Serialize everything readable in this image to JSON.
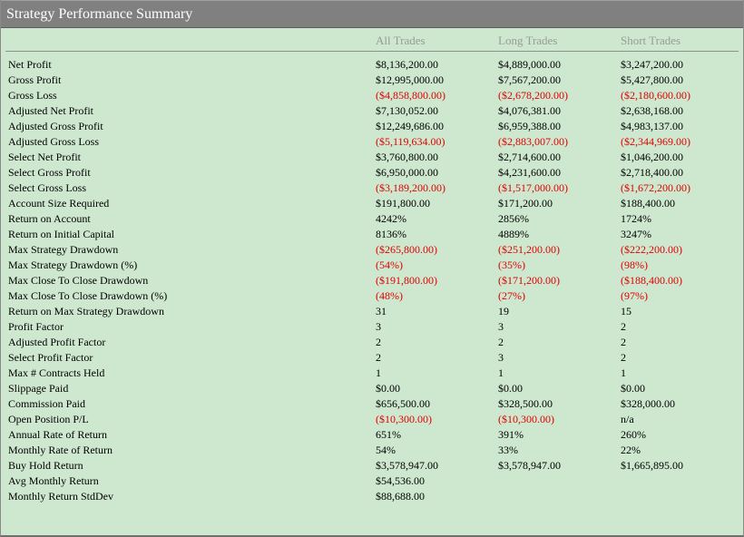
{
  "window": {
    "title": "Strategy Performance Summary"
  },
  "columns": {
    "all": "All Trades",
    "long": "Long Trades",
    "short": "Short Trades"
  },
  "rows": [
    {
      "label": "Net Profit",
      "all": "$8,136,200.00",
      "long": "$4,889,000.00",
      "short": "$3,247,200.00",
      "neg": [
        false,
        false,
        false
      ]
    },
    {
      "label": "Gross Profit",
      "all": "$12,995,000.00",
      "long": "$7,567,200.00",
      "short": "$5,427,800.00",
      "neg": [
        false,
        false,
        false
      ]
    },
    {
      "label": "Gross Loss",
      "all": "($4,858,800.00)",
      "long": "($2,678,200.00)",
      "short": "($2,180,600.00)",
      "neg": [
        true,
        true,
        true
      ]
    },
    {
      "label": "Adjusted Net Profit",
      "all": "$7,130,052.00",
      "long": "$4,076,381.00",
      "short": "$2,638,168.00",
      "neg": [
        false,
        false,
        false
      ]
    },
    {
      "label": "Adjusted Gross Profit",
      "all": "$12,249,686.00",
      "long": "$6,959,388.00",
      "short": "$4,983,137.00",
      "neg": [
        false,
        false,
        false
      ]
    },
    {
      "label": "Adjusted Gross Loss",
      "all": "($5,119,634.00)",
      "long": "($2,883,007.00)",
      "short": "($2,344,969.00)",
      "neg": [
        true,
        true,
        true
      ]
    },
    {
      "label": "Select Net Profit",
      "all": "$3,760,800.00",
      "long": "$2,714,600.00",
      "short": "$1,046,200.00",
      "neg": [
        false,
        false,
        false
      ]
    },
    {
      "label": "Select Gross Profit",
      "all": "$6,950,000.00",
      "long": "$4,231,600.00",
      "short": "$2,718,400.00",
      "neg": [
        false,
        false,
        false
      ]
    },
    {
      "label": "Select Gross Loss",
      "all": "($3,189,200.00)",
      "long": "($1,517,000.00)",
      "short": "($1,672,200.00)",
      "neg": [
        true,
        true,
        true
      ]
    },
    {
      "label": "Account Size Required",
      "all": "$191,800.00",
      "long": "$171,200.00",
      "short": "$188,400.00",
      "neg": [
        false,
        false,
        false
      ]
    },
    {
      "label": "Return on Account",
      "all": "4242%",
      "long": "2856%",
      "short": "1724%",
      "neg": [
        false,
        false,
        false
      ]
    },
    {
      "label": "Return on Initial Capital",
      "all": "8136%",
      "long": "4889%",
      "short": "3247%",
      "neg": [
        false,
        false,
        false
      ]
    },
    {
      "label": "Max Strategy Drawdown",
      "all": "($265,800.00)",
      "long": "($251,200.00)",
      "short": "($222,200.00)",
      "neg": [
        true,
        true,
        true
      ]
    },
    {
      "label": "Max Strategy Drawdown (%)",
      "all": "(54%)",
      "long": "(35%)",
      "short": "(98%)",
      "neg": [
        true,
        true,
        true
      ]
    },
    {
      "label": "Max Close To Close Drawdown",
      "all": "($191,800.00)",
      "long": "($171,200.00)",
      "short": "($188,400.00)",
      "neg": [
        true,
        true,
        true
      ]
    },
    {
      "label": "Max Close To Close Drawdown (%)",
      "all": "(48%)",
      "long": "(27%)",
      "short": "(97%)",
      "neg": [
        true,
        true,
        true
      ]
    },
    {
      "label": "Return on Max Strategy Drawdown",
      "all": "31",
      "long": "19",
      "short": "15",
      "neg": [
        false,
        false,
        false
      ]
    },
    {
      "label": "Profit Factor",
      "all": "3",
      "long": "3",
      "short": "2",
      "neg": [
        false,
        false,
        false
      ]
    },
    {
      "label": "Adjusted Profit Factor",
      "all": "2",
      "long": "2",
      "short": "2",
      "neg": [
        false,
        false,
        false
      ]
    },
    {
      "label": "Select Profit Factor",
      "all": "2",
      "long": "3",
      "short": "2",
      "neg": [
        false,
        false,
        false
      ]
    },
    {
      "label": "Max # Contracts Held",
      "all": "1",
      "long": "1",
      "short": "1",
      "neg": [
        false,
        false,
        false
      ]
    },
    {
      "label": "Slippage Paid",
      "all": "$0.00",
      "long": "$0.00",
      "short": "$0.00",
      "neg": [
        false,
        false,
        false
      ]
    },
    {
      "label": "Commission Paid",
      "all": "$656,500.00",
      "long": "$328,500.00",
      "short": "$328,000.00",
      "neg": [
        false,
        false,
        false
      ]
    },
    {
      "label": "Open Position P/L",
      "all": "($10,300.00)",
      "long": "($10,300.00)",
      "short": "n/a",
      "neg": [
        true,
        true,
        false
      ]
    },
    {
      "label": "Annual Rate of Return",
      "all": "651%",
      "long": "391%",
      "short": "260%",
      "neg": [
        false,
        false,
        false
      ]
    },
    {
      "label": "Monthly Rate of Return",
      "all": "54%",
      "long": "33%",
      "short": "22%",
      "neg": [
        false,
        false,
        false
      ]
    },
    {
      "label": "Buy  Hold Return",
      "all": "$3,578,947.00",
      "long": "$3,578,947.00",
      "short": "$1,665,895.00",
      "neg": [
        false,
        false,
        false
      ]
    },
    {
      "label": "Avg Monthly Return",
      "all": "$54,536.00",
      "long": "",
      "short": "",
      "neg": [
        false,
        false,
        false
      ]
    },
    {
      "label": "Monthly Return StdDev",
      "all": "$88,688.00",
      "long": "",
      "short": "",
      "neg": [
        false,
        false,
        false
      ]
    }
  ],
  "colors": {
    "background": "#cde8cf",
    "titlebar": "#808080",
    "negative": "#e00000",
    "column_header": "#9a9a9a"
  }
}
